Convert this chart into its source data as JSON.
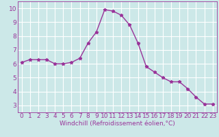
{
  "x": [
    0,
    1,
    2,
    3,
    4,
    5,
    6,
    7,
    8,
    9,
    10,
    11,
    12,
    13,
    14,
    15,
    16,
    17,
    18,
    19,
    20,
    21,
    22,
    23
  ],
  "y": [
    6.1,
    6.3,
    6.3,
    6.3,
    6.0,
    6.0,
    6.1,
    6.4,
    7.5,
    8.3,
    9.9,
    9.8,
    9.5,
    8.8,
    7.5,
    5.8,
    5.4,
    5.0,
    4.7,
    4.7,
    4.2,
    3.6,
    3.1,
    3.1
  ],
  "line_color": "#993399",
  "marker": "*",
  "marker_size": 3.5,
  "bg_color": "#cce8e8",
  "grid_color": "#ffffff",
  "xlabel": "Windchill (Refroidissement éolien,°C)",
  "xlabel_color": "#993399",
  "tick_color": "#993399",
  "label_color": "#993399",
  "ylim": [
    2.5,
    10.5
  ],
  "xlim": [
    -0.5,
    23.5
  ],
  "yticks": [
    3,
    4,
    5,
    6,
    7,
    8,
    9,
    10
  ],
  "xticks": [
    0,
    1,
    2,
    3,
    4,
    5,
    6,
    7,
    8,
    9,
    10,
    11,
    12,
    13,
    14,
    15,
    16,
    17,
    18,
    19,
    20,
    21,
    22,
    23
  ],
  "tick_fontsize": 6.5,
  "xlabel_fontsize": 6.5
}
